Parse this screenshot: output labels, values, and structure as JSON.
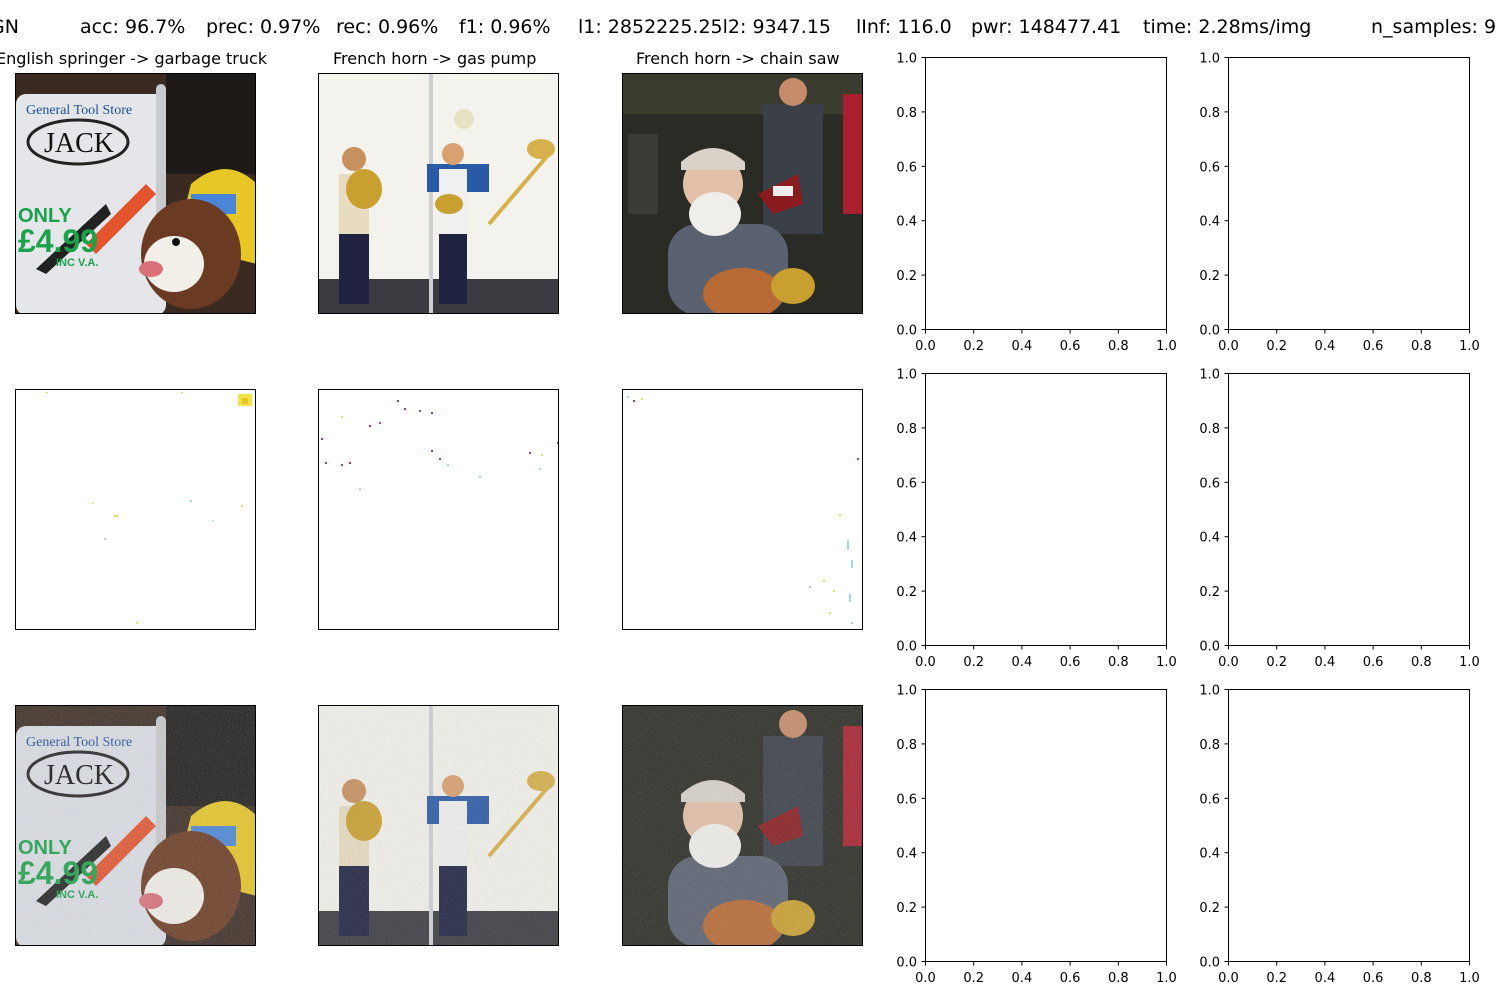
{
  "header": {
    "method": "GN",
    "accuracy": "acc: 96.7%",
    "precision": "prec: 0.97%",
    "recall": "rec: 0.96%",
    "f1": "f1: 0.96%",
    "l1_l2": "l1: 2852225.25l2: 9347.15",
    "linf": "lInf: 116.0",
    "power": "pwr: 148477.41",
    "time": "time: 2.28ms/img",
    "n_samples": "n_samples: 9"
  },
  "panels": [
    {
      "title": "English springer -> garbage truck",
      "original_image": "springer dog next to 'General Tool Store JACK ONLY £4.99 INC V.A.' sign with saw and yellow bucket",
      "perturbation_image": "sparse colored noise pixels on white",
      "adversarial_image": "same photo with gaussian noise"
    },
    {
      "title": "French horn -> gas pump",
      "original_image": "brass band musicians with French horn, music stand and trombone in white tent",
      "perturbation_image": "sparse colored noise pixels on white",
      "adversarial_image": "same photo with gaussian noise"
    },
    {
      "title": "French horn -> chain saw",
      "original_image": "bearded man in cap holding French horn, guitarist behind",
      "perturbation_image": "sparse colored noise pixels on white",
      "adversarial_image": "same photo with gaussian noise"
    }
  ],
  "sign_text": {
    "store": "General Tool Store",
    "brand": "JACK",
    "only": "ONLY",
    "price": "£4.99",
    "vat": "INC V.A."
  },
  "chart_data": {
    "type": "scatter",
    "empty_axes": [
      {
        "row": 1,
        "col": 4,
        "xlim": [
          0.0,
          1.0
        ],
        "ylim": [
          0.0,
          1.0
        ],
        "xticks": [
          "0.0",
          "0.2",
          "0.4",
          "0.6",
          "0.8",
          "1.0"
        ],
        "yticks": [
          "0.0",
          "0.2",
          "0.4",
          "0.6",
          "0.8",
          "1.0"
        ],
        "points": []
      },
      {
        "row": 1,
        "col": 5,
        "xlim": [
          0.0,
          1.0
        ],
        "ylim": [
          0.0,
          1.0
        ],
        "xticks": [
          "0.0",
          "0.2",
          "0.4",
          "0.6",
          "0.8",
          "1.0"
        ],
        "yticks": [
          "0.0",
          "0.2",
          "0.4",
          "0.6",
          "0.8",
          "1.0"
        ],
        "points": []
      },
      {
        "row": 2,
        "col": 4,
        "xlim": [
          0.0,
          1.0
        ],
        "ylim": [
          0.0,
          1.0
        ],
        "xticks": [
          "0.0",
          "0.2",
          "0.4",
          "0.6",
          "0.8",
          "1.0"
        ],
        "yticks": [
          "0.0",
          "0.2",
          "0.4",
          "0.6",
          "0.8",
          "1.0"
        ],
        "points": []
      },
      {
        "row": 2,
        "col": 5,
        "xlim": [
          0.0,
          1.0
        ],
        "ylim": [
          0.0,
          1.0
        ],
        "xticks": [
          "0.0",
          "0.2",
          "0.4",
          "0.6",
          "0.8",
          "1.0"
        ],
        "yticks": [
          "0.0",
          "0.2",
          "0.4",
          "0.6",
          "0.8",
          "1.0"
        ],
        "points": []
      },
      {
        "row": 3,
        "col": 4,
        "xlim": [
          0.0,
          1.0
        ],
        "ylim": [
          0.0,
          1.0
        ],
        "xticks": [
          "0.0",
          "0.2",
          "0.4",
          "0.6",
          "0.8",
          "1.0"
        ],
        "yticks": [
          "0.0",
          "0.2",
          "0.4",
          "0.6",
          "0.8",
          "1.0"
        ],
        "points": []
      },
      {
        "row": 3,
        "col": 5,
        "xlim": [
          0.0,
          1.0
        ],
        "ylim": [
          0.0,
          1.0
        ],
        "xticks": [
          "0.0",
          "0.2",
          "0.4",
          "0.6",
          "0.8",
          "1.0"
        ],
        "yticks": [
          "0.0",
          "0.2",
          "0.4",
          "0.6",
          "0.8",
          "1.0"
        ],
        "points": []
      }
    ]
  }
}
